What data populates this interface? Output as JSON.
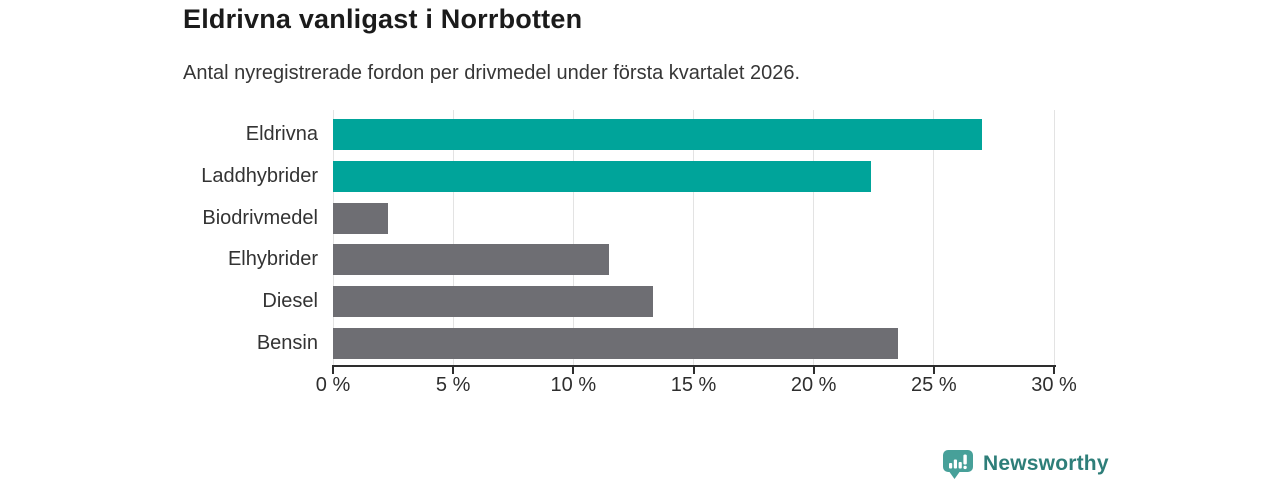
{
  "header": {
    "title": "Eldrivna vanligast i Norrbotten",
    "subtitle": "Antal nyregistrerade fordon per drivmedel under första kvartalet 2026."
  },
  "chart_data": {
    "type": "bar",
    "orientation": "horizontal",
    "title": "Eldrivna vanligast i Norrbotten",
    "subtitle": "Antal nyregistrerade fordon per drivmedel under första kvartalet 2026.",
    "categories": [
      "Eldrivna",
      "Laddhybrider",
      "Biodrivmedel",
      "Elhybrider",
      "Diesel",
      "Bensin"
    ],
    "values": [
      27.0,
      22.4,
      2.3,
      11.5,
      13.3,
      23.5
    ],
    "unit": "%",
    "bar_colors": [
      "#00a49a",
      "#00a49a",
      "#6e6e73",
      "#6e6e73",
      "#6e6e73",
      "#6e6e73"
    ],
    "xlim": [
      0,
      30
    ],
    "x_ticks": [
      0,
      5,
      10,
      15,
      20,
      25,
      30
    ],
    "x_tick_labels": [
      "0 %",
      "5 %",
      "10 %",
      "15 %",
      "20 %",
      "25 %",
      "30 %"
    ],
    "grid": true,
    "legend": false
  },
  "colors": {
    "accent_teal": "#00a49a",
    "bar_gray": "#6e6e73",
    "gridline": "#e3e3e3",
    "axis": "#2e2e2e",
    "text": "#333333",
    "logo_fill": "#47a099",
    "logo_text": "#2e7e79"
  },
  "footer": {
    "brand": "Newsworthy",
    "logo_icon": "bar-chart-exclamation-bubble-icon"
  }
}
